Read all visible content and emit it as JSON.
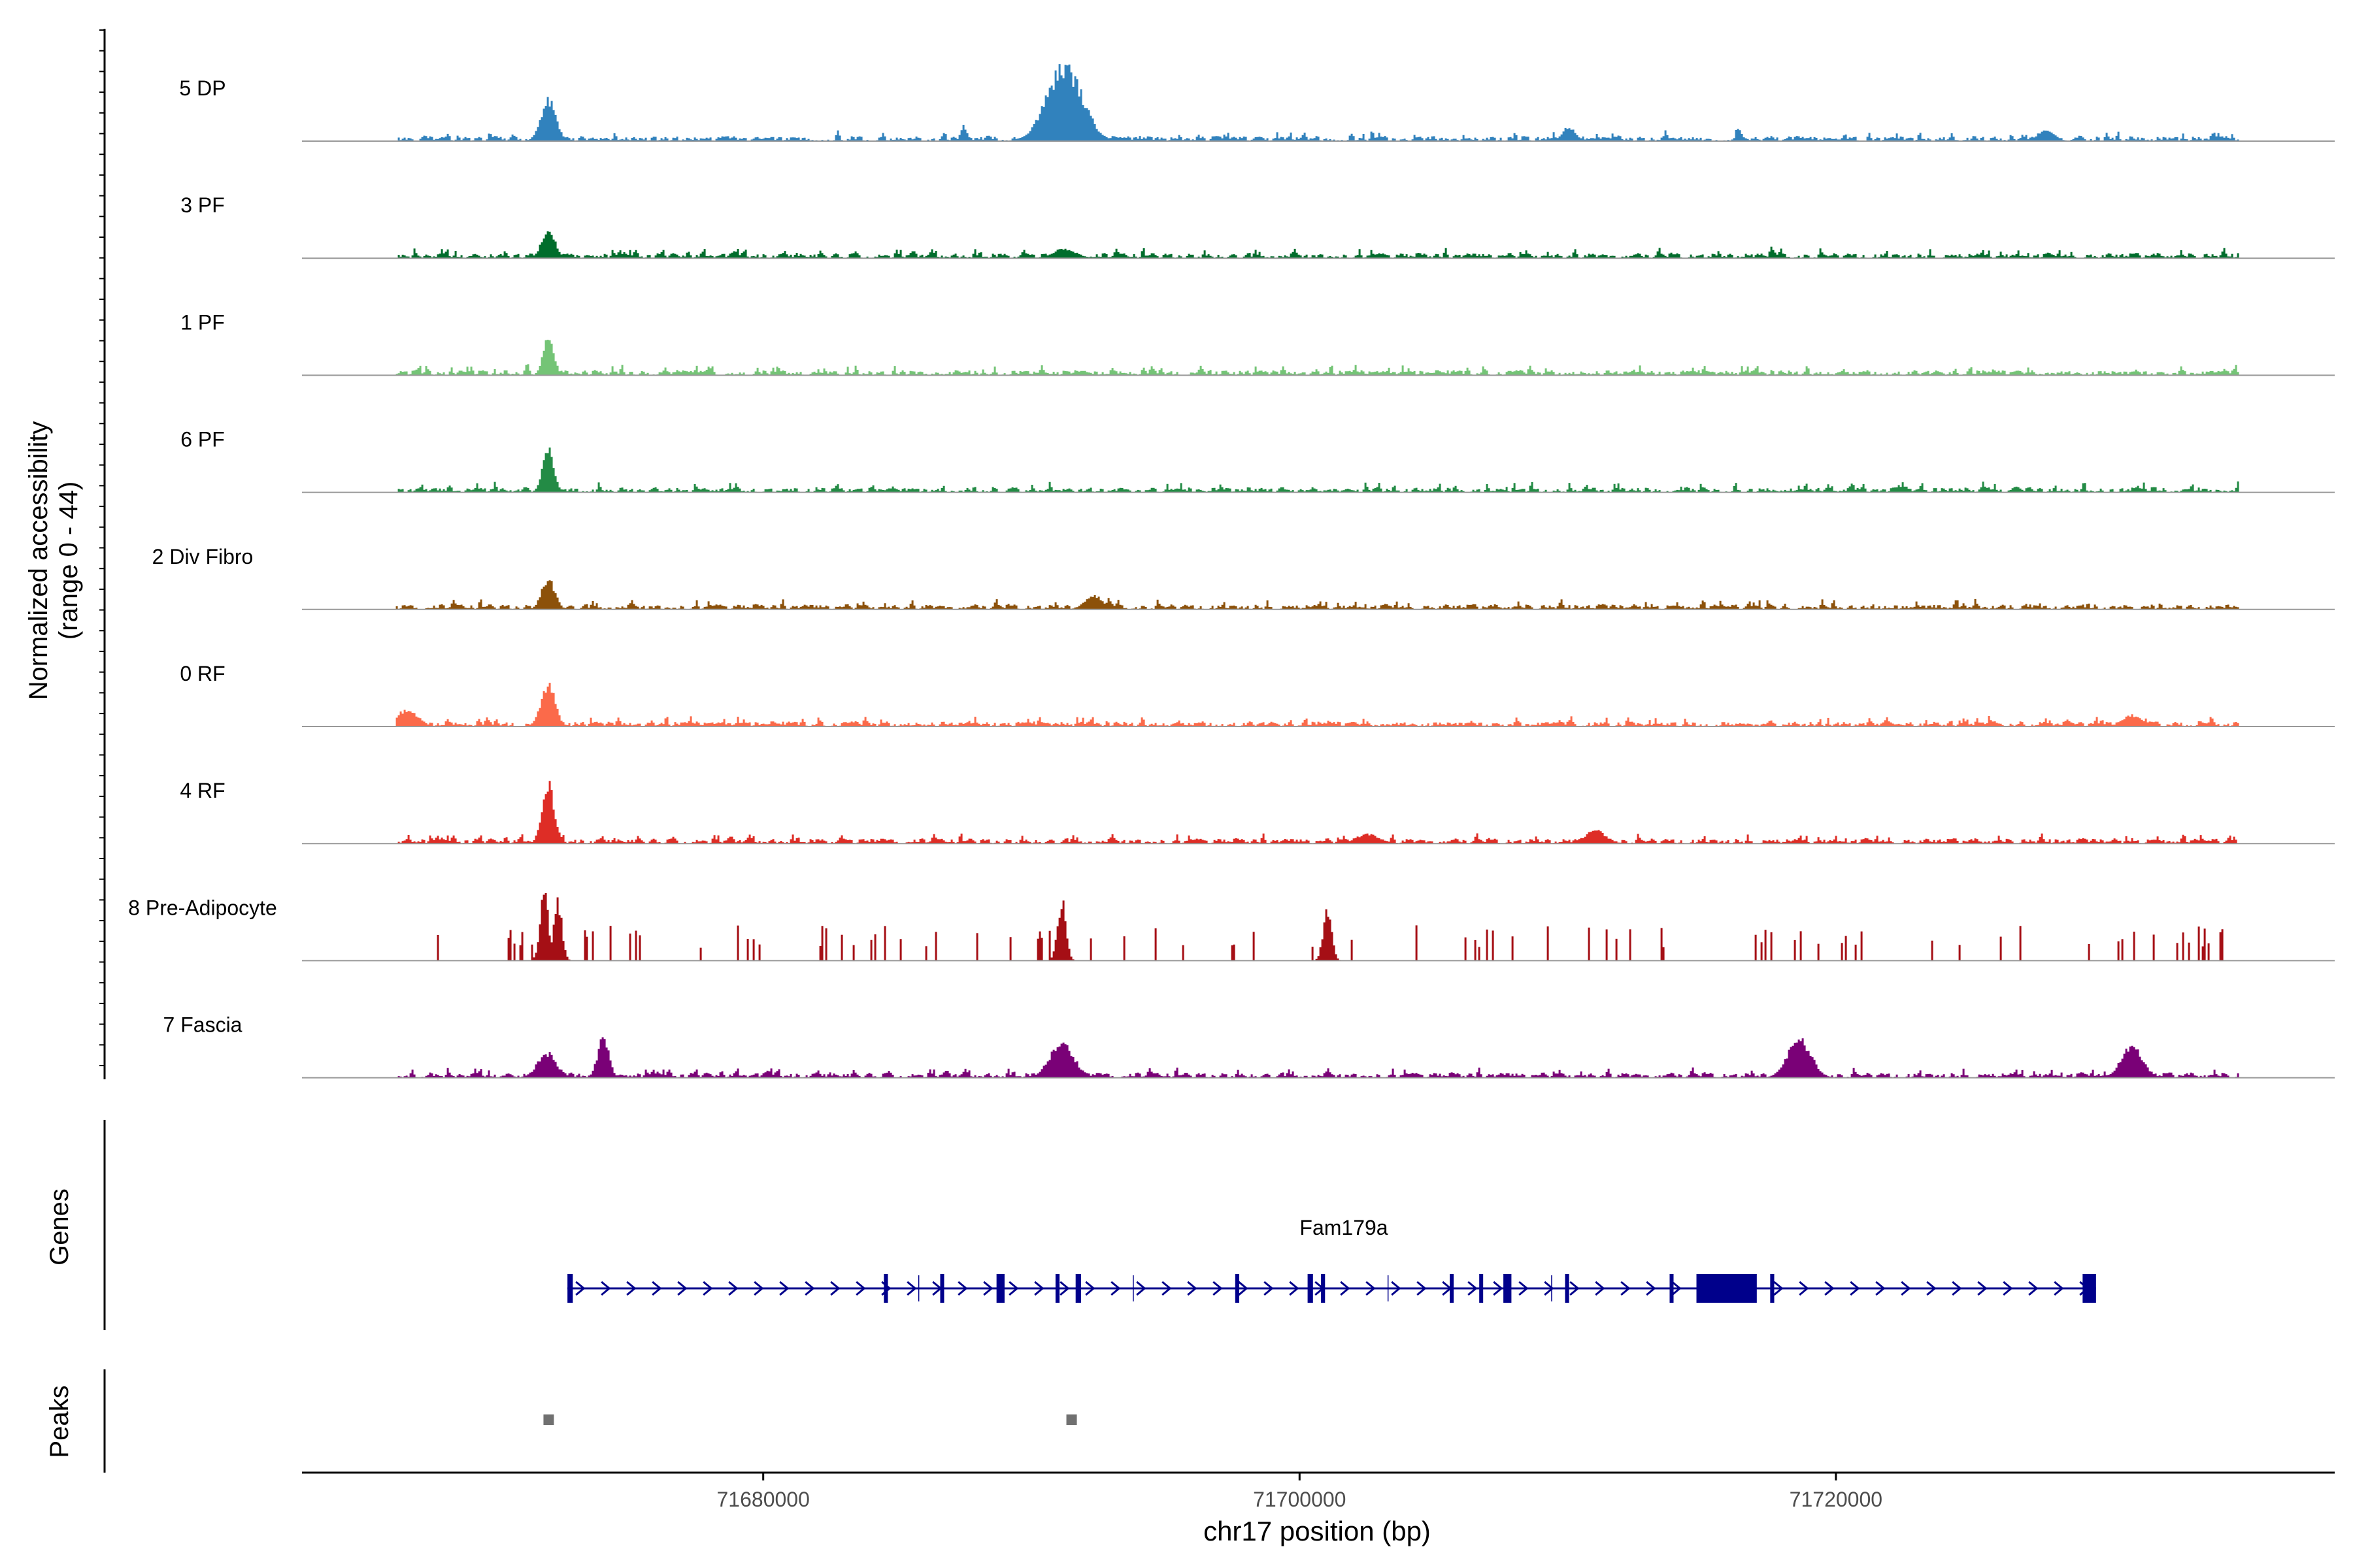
{
  "chart_data": {
    "type": "area",
    "title": "",
    "ylabel_line1": "Normalized accessibility",
    "ylabel_line2": "(range 0 - 44)",
    "genes_label": "Genes",
    "peaks_label": "Peaks",
    "xlabel": "chr17 position (bp)",
    "xlim": [
      71662800,
      71738600
    ],
    "xticks": [
      71680000,
      71700000,
      71720000
    ],
    "xtick_labels": [
      "71680000",
      "71700000",
      "71720000"
    ],
    "ylim": [
      0,
      44
    ],
    "data_start": 71666300,
    "data_end": 71735100,
    "tracks": [
      {
        "name": "5 DP",
        "color": "#3182bd",
        "peaks": [
          [
            71671950,
            0.44,
            160
          ],
          [
            71687450,
            0.16,
            70
          ],
          [
            71691200,
            0.78,
            380
          ],
          [
            71710000,
            0.14,
            150
          ],
          [
            71727800,
            0.12,
            180
          ]
        ]
      },
      {
        "name": "3 PF",
        "color": "#006d2c",
        "peaks": [
          [
            71671950,
            0.3,
            140
          ],
          [
            71691200,
            0.1,
            250
          ]
        ]
      },
      {
        "name": "1 PF",
        "color": "#74c476",
        "peaks": [
          [
            71671950,
            0.4,
            110
          ]
        ]
      },
      {
        "name": "6 PF",
        "color": "#238b45",
        "peaks": [
          [
            71671950,
            0.46,
            120
          ]
        ]
      },
      {
        "name": "2 Div Fibro",
        "color": "#8c510a",
        "peaks": [
          [
            71671950,
            0.32,
            140
          ],
          [
            71692300,
            0.14,
            200
          ]
        ]
      },
      {
        "name": "0 RF",
        "color": "#fb6a4a",
        "peaks": [
          [
            71671950,
            0.44,
            150
          ],
          [
            71666700,
            0.18,
            220
          ],
          [
            71731000,
            0.12,
            200
          ]
        ]
      },
      {
        "name": "4 RF",
        "color": "#de2d26",
        "peaks": [
          [
            71671950,
            0.62,
            130
          ],
          [
            71711000,
            0.14,
            220
          ],
          [
            71702500,
            0.1,
            250
          ]
        ]
      },
      {
        "name": "8 Pre-Adipocyte",
        "color": "#a50f15",
        "peaks": [
          [
            71671800,
            0.7,
            90
          ],
          [
            71672300,
            0.62,
            90
          ],
          [
            71691100,
            0.62,
            90
          ],
          [
            71701000,
            0.56,
            90
          ]
        ]
      },
      {
        "name": "7 Fascia",
        "color": "#7a0177",
        "peaks": [
          [
            71671900,
            0.26,
            200
          ],
          [
            71674000,
            0.42,
            120
          ],
          [
            71691100,
            0.36,
            260
          ],
          [
            71718600,
            0.4,
            250
          ],
          [
            71731000,
            0.32,
            230
          ]
        ]
      }
    ],
    "gene": {
      "name": "Fam179a",
      "color": "#00008b",
      "start": 71672700,
      "end": 71729700,
      "strand": "+",
      "exons": [
        [
          71672700,
          71672900
        ],
        [
          71684500,
          71684650
        ],
        [
          71686600,
          71686700
        ],
        [
          71688700,
          71689000
        ],
        [
          71690900,
          71691050
        ],
        [
          71691650,
          71691850
        ],
        [
          71697600,
          71697750
        ],
        [
          71700300,
          71700500
        ],
        [
          71700800,
          71700950
        ],
        [
          71705600,
          71705700
        ],
        [
          71706700,
          71706800
        ],
        [
          71707600,
          71707900
        ],
        [
          71709900,
          71710050
        ],
        [
          71713800,
          71713900
        ],
        [
          71714800,
          71717050
        ],
        [
          71717550,
          71717700
        ],
        [
          71729200,
          71729700
        ]
      ],
      "introns_minor": [
        71685800,
        71693800,
        71703300,
        71709400
      ]
    },
    "peak_regions": [
      71672000,
      71691500
    ],
    "peak_color": "#707070"
  }
}
